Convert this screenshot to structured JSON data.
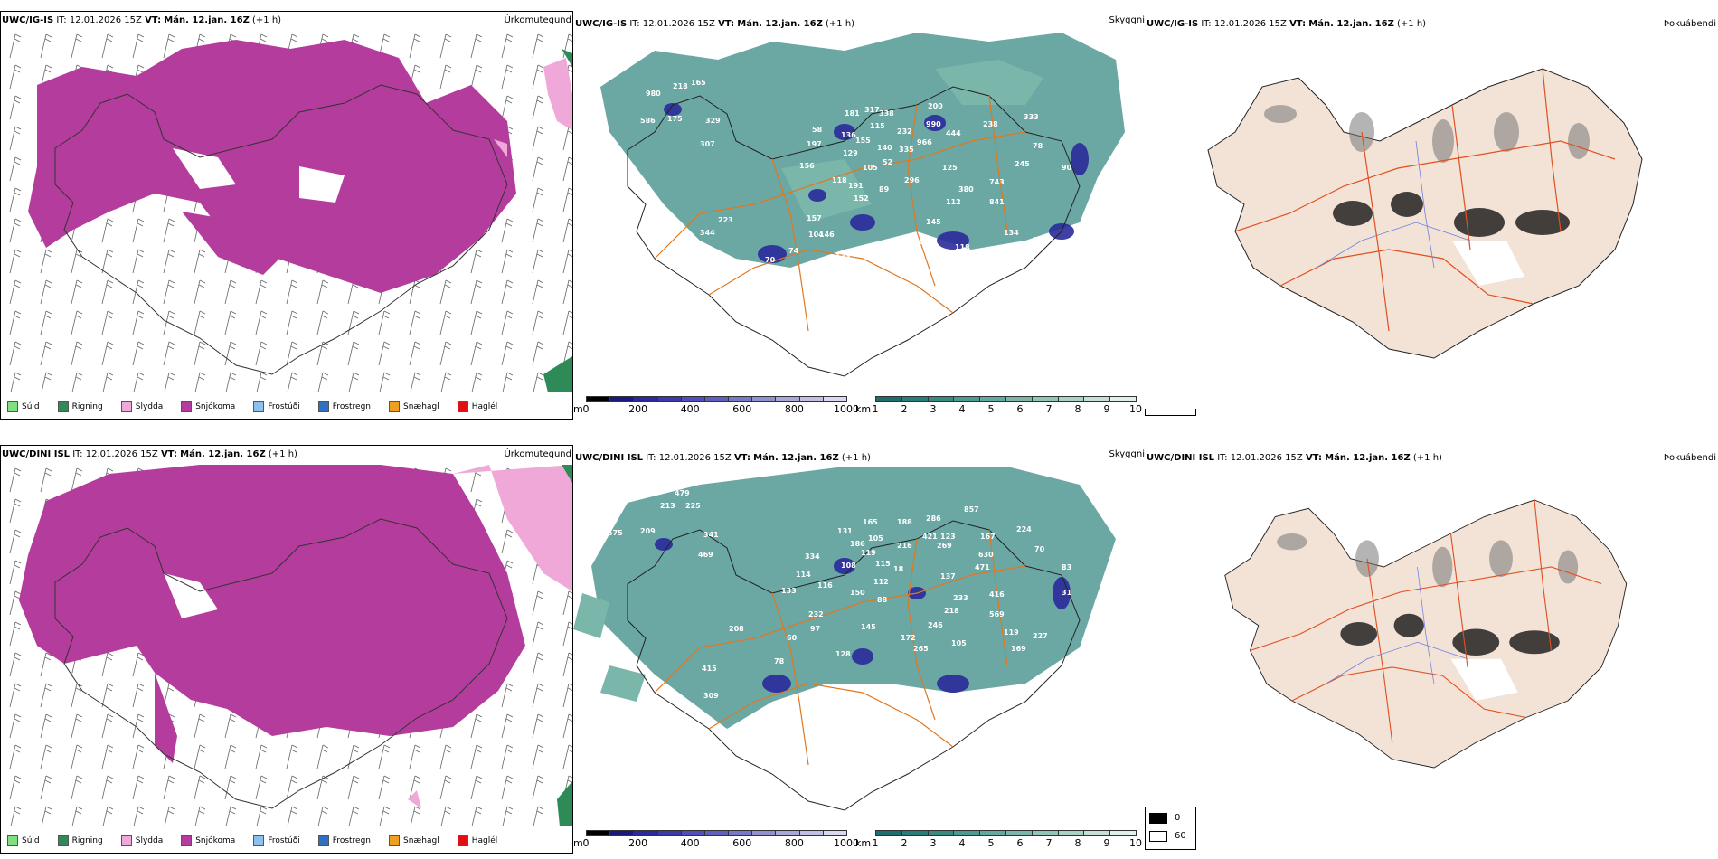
{
  "rows": [
    {
      "model": "UWC/IG-IS",
      "it_label": "IT:",
      "it_value": "12.01.2026 15Z",
      "vt_label": "VT:",
      "vt_value": "Mán. 12.jan. 16Z",
      "lead": "(+1 h)"
    },
    {
      "model": "UWC/DINI ISL",
      "it_label": "IT:",
      "it_value": "12.01.2026 15Z",
      "vt_label": "VT:",
      "vt_value": "Mán. 12.jan. 16Z",
      "lead": "(+1 h)"
    }
  ],
  "panel_titles": {
    "precip": "Úrkomutegund",
    "cloud": "Skyggni",
    "fog": "Þokuábendi"
  },
  "precip_legend": [
    {
      "label": "Súld",
      "color": "#7fe07f"
    },
    {
      "label": "Rigning",
      "color": "#2e8b57"
    },
    {
      "label": "Slydda",
      "color": "#f0a8d8"
    },
    {
      "label": "Snjókoma",
      "color": "#b43c9c"
    },
    {
      "label": "Frostúði",
      "color": "#8cc0f0"
    },
    {
      "label": "Frostregn",
      "color": "#3070c0"
    },
    {
      "label": "Snæhagl",
      "color": "#f0a020"
    },
    {
      "label": "Haglél",
      "color": "#e01010"
    }
  ],
  "colorbars": {
    "ceiling_unit": "m",
    "ceiling_ticks": [
      "0",
      "200",
      "400",
      "600",
      "800",
      "1000"
    ],
    "ceiling_colors": [
      "#000000",
      "#1a1a7a",
      "#2a2a9a",
      "#3a3aa8",
      "#5050b8",
      "#6060c0",
      "#7878c8",
      "#9090d0",
      "#a8a8d8",
      "#c0c0e4",
      "#d8d8f0"
    ],
    "vis_unit": "km",
    "vis_ticks": [
      "1",
      "2",
      "3",
      "4",
      "5",
      "6",
      "7",
      "8",
      "9",
      "10"
    ],
    "vis_colors": [
      "#1e6e6e",
      "#2a7e7a",
      "#3a8a84",
      "#4e9a92",
      "#64a89e",
      "#7ab6aa",
      "#92c4b8",
      "#acd2c8",
      "#c6e0d8",
      "#e2f0ec"
    ],
    "fog_labels": [
      "0",
      "60"
    ]
  },
  "cloud_labels_top": [
    "980",
    "218",
    "165",
    "586",
    "175",
    "329",
    "307",
    "58",
    "197",
    "181",
    "317",
    "338",
    "200",
    "990",
    "238",
    "333",
    "136",
    "155",
    "115",
    "232",
    "966",
    "444",
    "78",
    "129",
    "140",
    "335",
    "156",
    "105",
    "52",
    "125",
    "245",
    "90",
    "118",
    "191",
    "296",
    "380",
    "743",
    "157",
    "89",
    "152",
    "112",
    "841",
    "223",
    "146",
    "145",
    "344",
    "104",
    "92",
    "184",
    "134",
    "74",
    "118",
    "116",
    "70",
    "133",
    "30"
  ],
  "cloud_labels_bottom": [
    "479",
    "213",
    "225",
    "575",
    "209",
    "341",
    "469",
    "165",
    "188",
    "286",
    "857",
    "131",
    "186",
    "105",
    "216",
    "421",
    "123",
    "167",
    "224",
    "119",
    "269",
    "630",
    "70",
    "334",
    "115",
    "83",
    "114",
    "108",
    "18",
    "471",
    "133",
    "116",
    "150",
    "112",
    "137",
    "31",
    "88",
    "233",
    "416",
    "218",
    "232",
    "569",
    "97",
    "145",
    "246",
    "119",
    "60",
    "172",
    "208",
    "265",
    "105",
    "169",
    "227",
    "78",
    "128",
    "415",
    "309"
  ]
}
